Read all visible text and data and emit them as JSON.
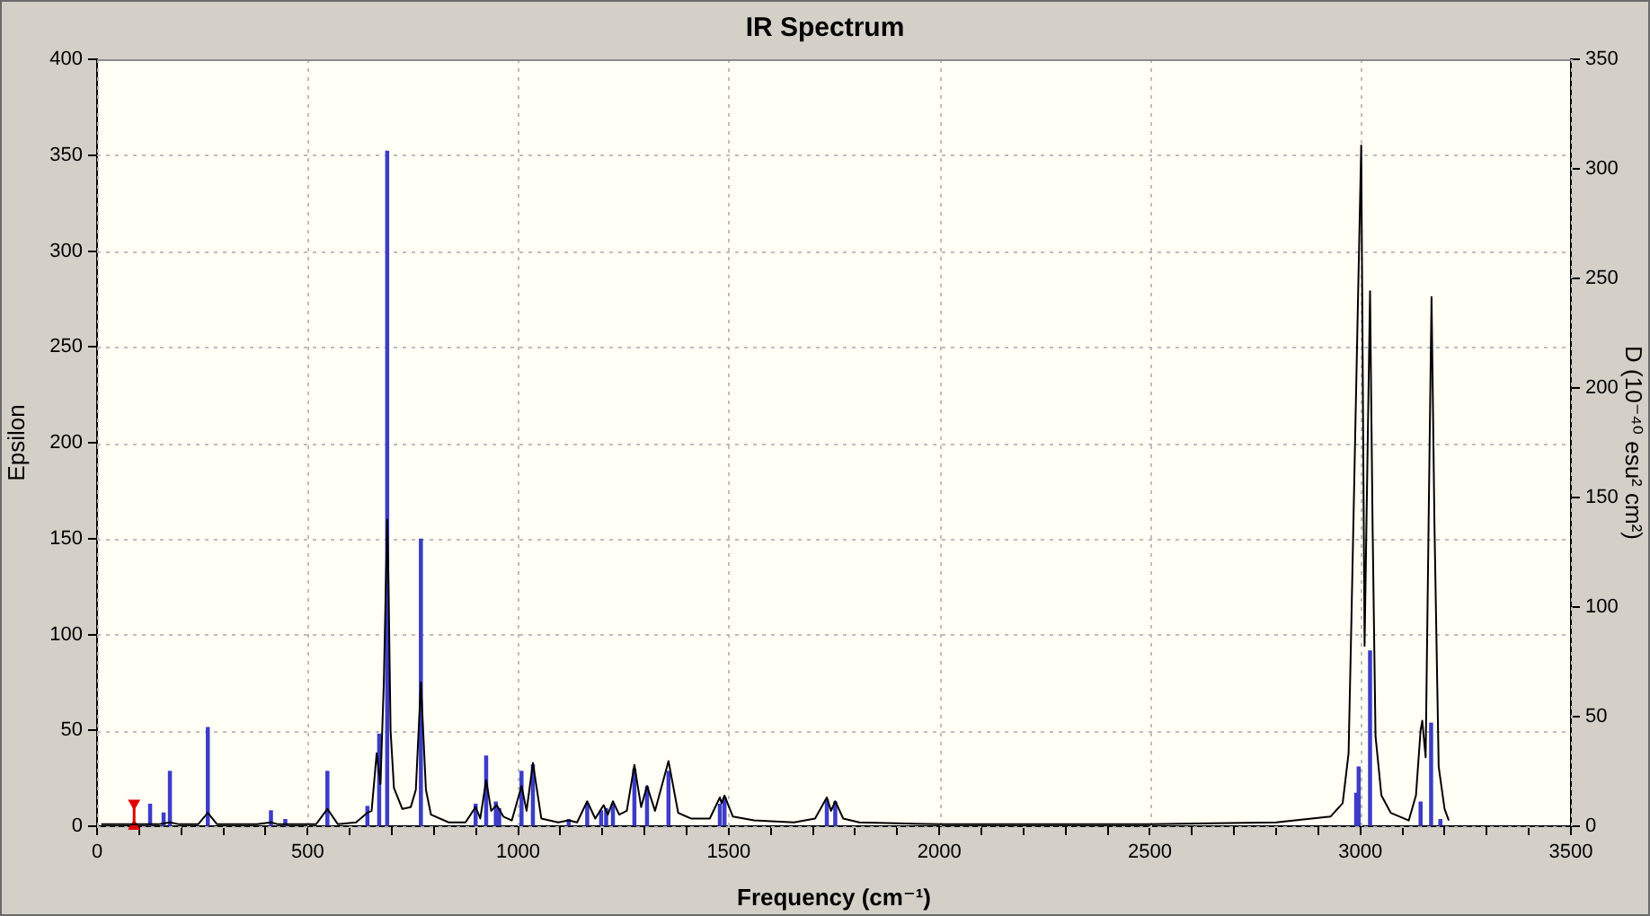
{
  "chart_data": {
    "type": "line",
    "title": "IR Spectrum",
    "xlabel": "Frequency (cm⁻¹)",
    "ylabel": "Epsilon",
    "y2label": "D (10⁻⁴⁰ esu² cm²)",
    "xlim": [
      0,
      3500
    ],
    "xticks": [
      0,
      {
        "value": 100,
        "label": null
      },
      {
        "value": 200,
        "label": null
      },
      {
        "value": 300,
        "label": null
      },
      {
        "value": 400,
        "label": null
      },
      500,
      {
        "value": 600,
        "label": null
      },
      {
        "value": 700,
        "label": null
      },
      {
        "value": 800,
        "label": null
      },
      {
        "value": 900,
        "label": null
      },
      1000,
      {
        "value": 1100,
        "label": null
      },
      {
        "value": 1200,
        "label": null
      },
      {
        "value": 1300,
        "label": null
      },
      {
        "value": 1400,
        "label": null
      },
      1500,
      {
        "value": 1600,
        "label": null
      },
      {
        "value": 1700,
        "label": null
      },
      {
        "value": 1800,
        "label": null
      },
      {
        "value": 1900,
        "label": null
      },
      2000,
      {
        "value": 2100,
        "label": null
      },
      {
        "value": 2200,
        "label": null
      },
      {
        "value": 2300,
        "label": null
      },
      {
        "value": 2400,
        "label": null
      },
      2500,
      {
        "value": 2600,
        "label": null
      },
      {
        "value": 2700,
        "label": null
      },
      {
        "value": 2800,
        "label": null
      },
      {
        "value": 2900,
        "label": null
      },
      3000,
      {
        "value": 3100,
        "label": null
      },
      {
        "value": 3200,
        "label": null
      },
      {
        "value": 3300,
        "label": null
      },
      {
        "value": 3400,
        "label": null
      },
      3500
    ],
    "ylim": [
      0,
      400
    ],
    "yticks": [
      0,
      50,
      100,
      150,
      200,
      250,
      300,
      350,
      400
    ],
    "y2lim": [
      0,
      350
    ],
    "y2ticks": [
      0,
      50,
      100,
      150,
      200,
      250,
      300,
      350
    ],
    "grid": true,
    "marker": "none",
    "series": [
      {
        "color": "#000000",
        "x": [
          10,
          80,
          110,
          126,
          145,
          173,
          195,
          240,
          263,
          285,
          380,
          413,
          430,
          447,
          470,
          520,
          547,
          572,
          615,
          642,
          652,
          664,
          673,
          681,
          689,
          692,
          697,
          705,
          725,
          745,
          757,
          769,
          781,
          793,
          835,
          875,
          899,
          910,
          924,
          936,
          949,
          965,
          985,
          1008,
          1020,
          1035,
          1055,
          1095,
          1120,
          1140,
          1164,
          1183,
          1203,
          1213,
          1225,
          1240,
          1258,
          1276,
          1292,
          1306,
          1325,
          1357,
          1380,
          1410,
          1432,
          1455,
          1479,
          1483,
          1490,
          1510,
          1560,
          1655,
          1705,
          1733,
          1743,
          1753,
          1772,
          1810,
          2000,
          2500,
          2800,
          2929,
          2958,
          2972,
          2979,
          2993,
          3002,
          3010,
          3023,
          3029,
          3036,
          3050,
          3072,
          3115,
          3132,
          3143,
          3147,
          3155,
          3162,
          3169,
          3176,
          3186,
          3200,
          3210
        ],
        "values": [
          1,
          1,
          1,
          1,
          1,
          2,
          1,
          1,
          7,
          1,
          1,
          2,
          1,
          1,
          1,
          1,
          9,
          1,
          2,
          7,
          8,
          38,
          22,
          75,
          160,
          128,
          50,
          20,
          9,
          10,
          19,
          75,
          19,
          6,
          2,
          2,
          10,
          4,
          24,
          8,
          11,
          5,
          3,
          21,
          8,
          33,
          4,
          2,
          3,
          2,
          13,
          4,
          11,
          6,
          13,
          6,
          8,
          32,
          10,
          21,
          8,
          34,
          7,
          4,
          4,
          4,
          15,
          12,
          16,
          5,
          3,
          2,
          4,
          15,
          8,
          13,
          4,
          2,
          1,
          1,
          2,
          5,
          12,
          38,
          110,
          260,
          355,
          94,
          279,
          157,
          47,
          16,
          7,
          3,
          16,
          50,
          55,
          36,
          157,
          276,
          157,
          31,
          9,
          3
        ]
      },
      {
        "type": "bar",
        "axis": "y2",
        "color": "#3c3cc8",
        "x": [
          126,
          158,
          173,
          263,
          413,
          447,
          547,
          642,
          670,
          689,
          769,
          899,
          924,
          947,
          955,
          1008,
          1035,
          1120,
          1164,
          1197,
          1209,
          1225,
          1276,
          1306,
          1357,
          1479,
          1490,
          1733,
          1753,
          2990,
          2996,
          3023,
          3143,
          3168,
          3190
        ],
        "values": [
          10,
          6,
          25,
          45,
          7,
          3,
          25,
          9,
          42,
          308,
          131,
          10,
          32,
          11,
          8,
          25,
          28,
          3,
          10,
          7,
          8,
          10,
          26,
          18,
          25,
          10,
          13,
          12,
          11,
          15,
          27,
          80,
          11,
          47,
          3
        ]
      },
      {
        "type": "scatter",
        "color": "#e00000",
        "marker": "triangle",
        "line_style": "solid",
        "x": [
          88,
          88
        ],
        "values": [
          0,
          12
        ]
      }
    ]
  }
}
